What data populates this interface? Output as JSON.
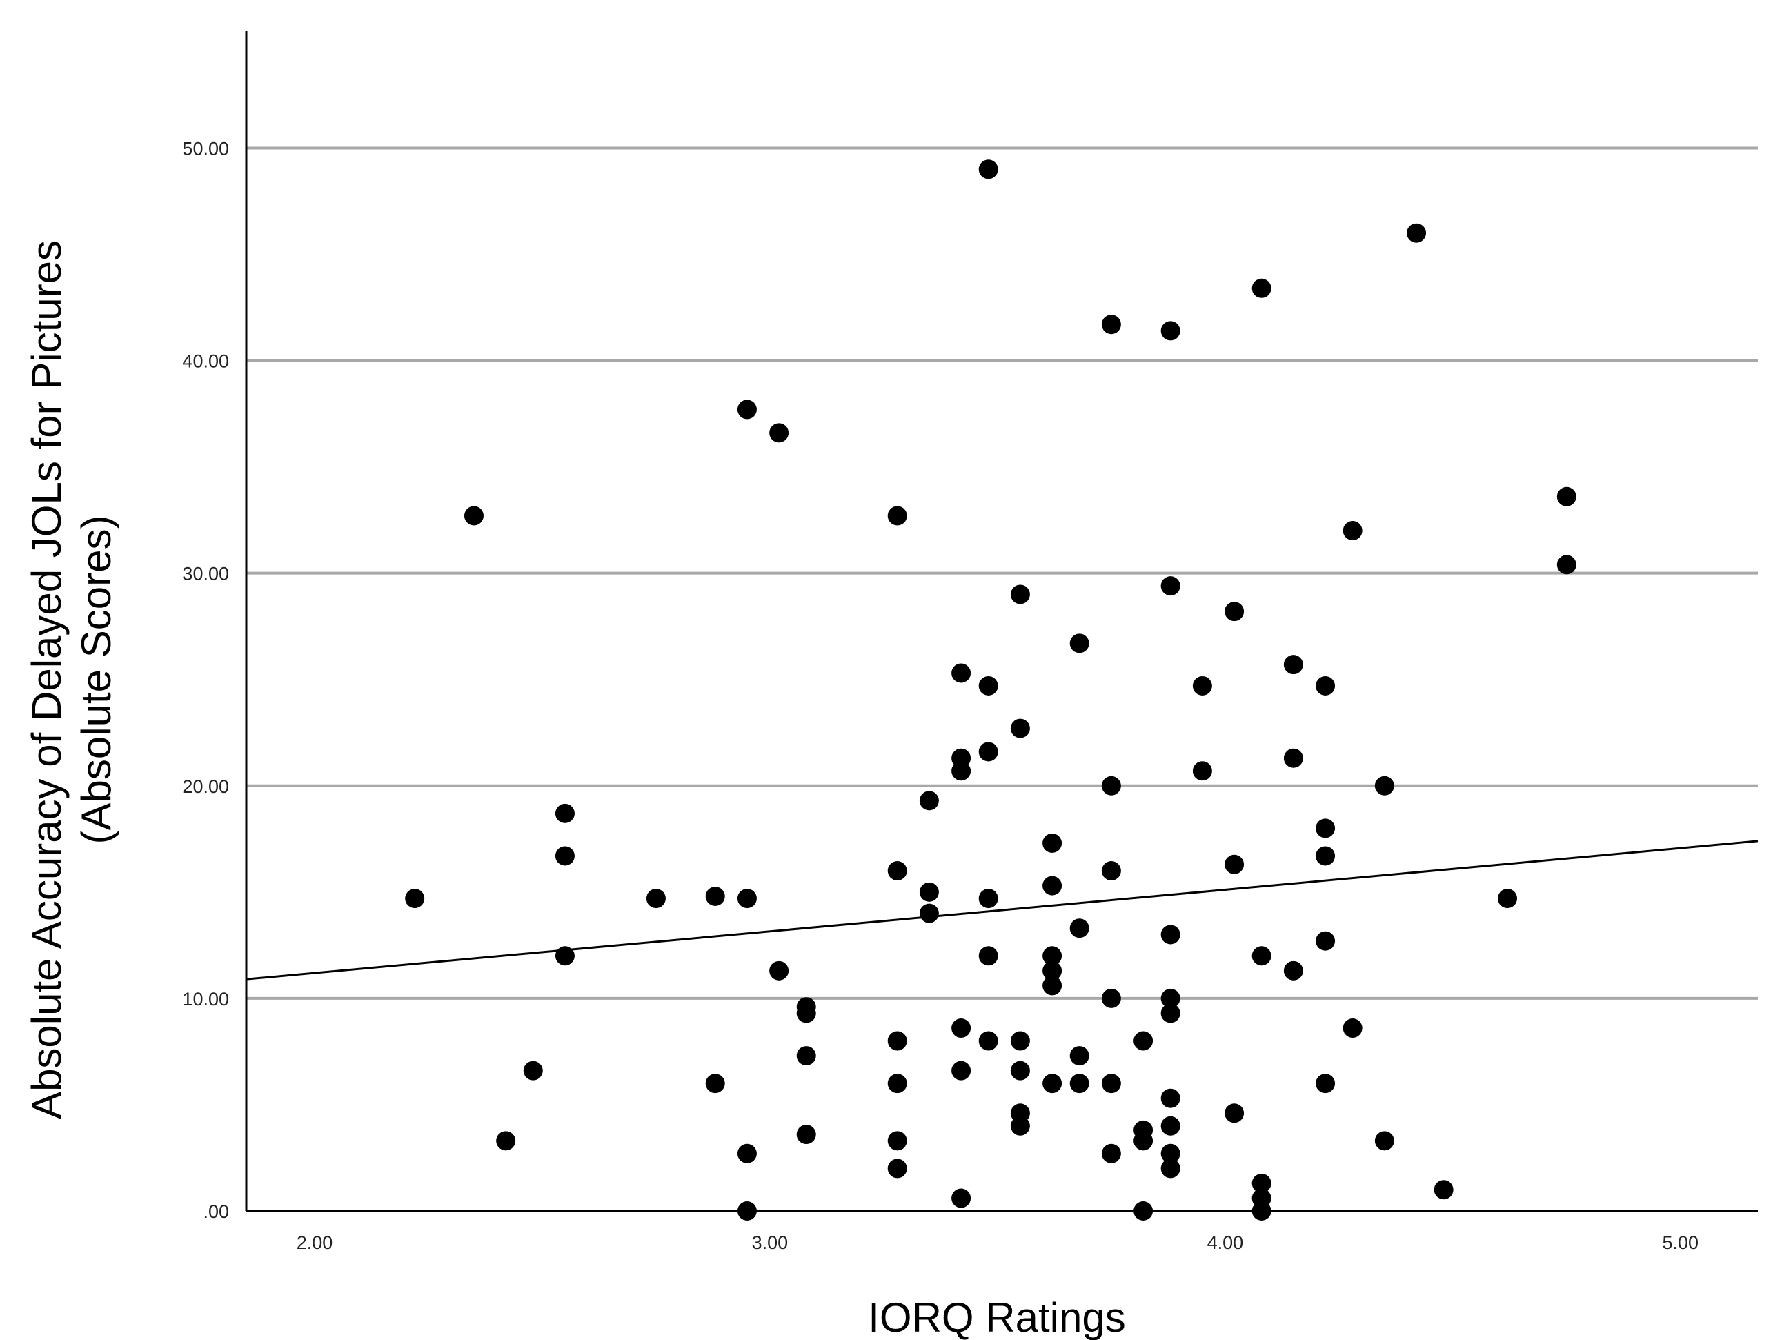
{
  "chart_data": {
    "type": "scatter",
    "xlabel": "IORQ Ratings",
    "ylabel": [
      "Absolute Accuracy of Delayed JOLs for Pictures",
      "(Absolute Scores)"
    ],
    "xlim": [
      1.85,
      5.17
    ],
    "ylim": [
      0,
      55.5
    ],
    "x_ticks": [
      {
        "value": 2,
        "label": "2.00"
      },
      {
        "value": 3,
        "label": "3.00"
      },
      {
        "value": 4,
        "label": "4.00"
      },
      {
        "value": 5,
        "label": "5.00"
      }
    ],
    "y_ticks": [
      {
        "value": 0,
        "label": ".00"
      },
      {
        "value": 10,
        "label": "10.00"
      },
      {
        "value": 20,
        "label": "20.00"
      },
      {
        "value": 30,
        "label": "30.00"
      },
      {
        "value": 40,
        "label": "40.00"
      },
      {
        "value": 50,
        "label": "50.00"
      }
    ],
    "grid": "horizontal",
    "fit_line": {
      "x": [
        1.85,
        5.17
      ],
      "y": [
        10.9,
        17.4
      ]
    },
    "point_color": "#000000",
    "points": [
      [
        2.22,
        14.7
      ],
      [
        2.35,
        32.7
      ],
      [
        2.42,
        3.3
      ],
      [
        2.48,
        6.6
      ],
      [
        2.55,
        18.7
      ],
      [
        2.55,
        16.7
      ],
      [
        2.55,
        12.0
      ],
      [
        2.75,
        14.7
      ],
      [
        2.88,
        14.8
      ],
      [
        2.88,
        6.0
      ],
      [
        2.95,
        37.7
      ],
      [
        2.95,
        14.7
      ],
      [
        2.95,
        2.7
      ],
      [
        2.95,
        0.0
      ],
      [
        3.02,
        36.6
      ],
      [
        3.02,
        11.3
      ],
      [
        3.08,
        9.6
      ],
      [
        3.08,
        9.3
      ],
      [
        3.08,
        7.3
      ],
      [
        3.08,
        3.6
      ],
      [
        3.28,
        32.7
      ],
      [
        3.28,
        16.0
      ],
      [
        3.28,
        8.0
      ],
      [
        3.28,
        6.0
      ],
      [
        3.28,
        3.3
      ],
      [
        3.28,
        2.0
      ],
      [
        3.35,
        19.3
      ],
      [
        3.35,
        15.0
      ],
      [
        3.35,
        14.0
      ],
      [
        3.42,
        25.3
      ],
      [
        3.42,
        21.3
      ],
      [
        3.42,
        20.7
      ],
      [
        3.42,
        8.6
      ],
      [
        3.42,
        6.6
      ],
      [
        3.42,
        0.6
      ],
      [
        3.48,
        49.0
      ],
      [
        3.48,
        24.7
      ],
      [
        3.48,
        21.6
      ],
      [
        3.48,
        14.7
      ],
      [
        3.48,
        12.0
      ],
      [
        3.48,
        8.0
      ],
      [
        3.55,
        29.0
      ],
      [
        3.55,
        22.7
      ],
      [
        3.55,
        8.0
      ],
      [
        3.55,
        6.6
      ],
      [
        3.55,
        4.6
      ],
      [
        3.55,
        4.0
      ],
      [
        3.62,
        17.3
      ],
      [
        3.62,
        15.3
      ],
      [
        3.62,
        12.0
      ],
      [
        3.62,
        11.3
      ],
      [
        3.62,
        10.6
      ],
      [
        3.62,
        6.0
      ],
      [
        3.68,
        26.7
      ],
      [
        3.68,
        13.3
      ],
      [
        3.68,
        7.3
      ],
      [
        3.68,
        6.0
      ],
      [
        3.75,
        41.7
      ],
      [
        3.75,
        20.0
      ],
      [
        3.75,
        16.0
      ],
      [
        3.75,
        10.0
      ],
      [
        3.75,
        6.0
      ],
      [
        3.75,
        2.7
      ],
      [
        3.82,
        8.0
      ],
      [
        3.82,
        3.8
      ],
      [
        3.82,
        3.3
      ],
      [
        3.82,
        0.0
      ],
      [
        3.88,
        41.4
      ],
      [
        3.88,
        29.4
      ],
      [
        3.88,
        13.0
      ],
      [
        3.88,
        10.0
      ],
      [
        3.88,
        9.3
      ],
      [
        3.88,
        5.3
      ],
      [
        3.88,
        4.0
      ],
      [
        3.88,
        2.7
      ],
      [
        3.88,
        2.0
      ],
      [
        3.95,
        24.7
      ],
      [
        3.95,
        20.7
      ],
      [
        4.02,
        28.2
      ],
      [
        4.02,
        16.3
      ],
      [
        4.02,
        4.6
      ],
      [
        4.08,
        43.4
      ],
      [
        4.08,
        12.0
      ],
      [
        4.08,
        1.3
      ],
      [
        4.08,
        0.6
      ],
      [
        4.08,
        0.0
      ],
      [
        4.15,
        25.7
      ],
      [
        4.15,
        21.3
      ],
      [
        4.15,
        11.3
      ],
      [
        4.22,
        24.7
      ],
      [
        4.22,
        18.0
      ],
      [
        4.22,
        16.7
      ],
      [
        4.22,
        12.7
      ],
      [
        4.22,
        6.0
      ],
      [
        4.28,
        32.0
      ],
      [
        4.28,
        8.6
      ],
      [
        4.35,
        20.0
      ],
      [
        4.35,
        3.3
      ],
      [
        4.42,
        46.0
      ],
      [
        4.48,
        1.0
      ],
      [
        4.62,
        14.7
      ],
      [
        4.75,
        33.6
      ],
      [
        4.75,
        30.4
      ]
    ]
  }
}
